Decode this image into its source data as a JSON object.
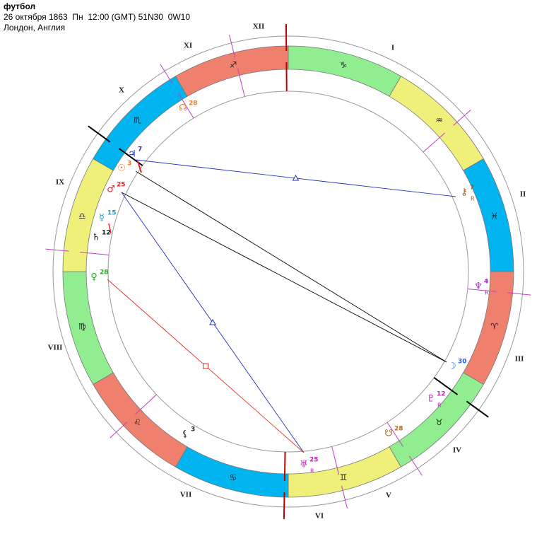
{
  "header": {
    "title": "футбол",
    "details": "26 октября 1863  Пн  12:00 (GMT) 51N30  0W10",
    "place": "Лондон, Англия"
  },
  "houses": [
    "I",
    "II",
    "III",
    "IV",
    "V",
    "VI",
    "VII",
    "VIII",
    "IX",
    "X",
    "XI",
    "XII"
  ],
  "signs": [
    {
      "glyph": "♑",
      "color": "#90ee90"
    },
    {
      "glyph": "♒",
      "color": "#eef07a"
    },
    {
      "glyph": "♓",
      "color": "#00b4f0"
    },
    {
      "glyph": "♈",
      "color": "#f0806e"
    },
    {
      "glyph": "♉",
      "color": "#90ee90"
    },
    {
      "glyph": "♊",
      "color": "#eef07a"
    },
    {
      "glyph": "♋",
      "color": "#00b4f0"
    },
    {
      "glyph": "♌",
      "color": "#f0806e"
    },
    {
      "glyph": "♍",
      "color": "#90ee90"
    },
    {
      "glyph": "♎",
      "color": "#eef07a"
    },
    {
      "glyph": "♏",
      "color": "#00b4f0"
    },
    {
      "glyph": "♐",
      "color": "#f0806e"
    }
  ],
  "planets": [
    {
      "glyph": "♃",
      "degree": 7,
      "color": "#2030c0"
    },
    {
      "glyph": "☉",
      "degree": 3,
      "color": "#f07020"
    },
    {
      "glyph": "♂",
      "degree": 25,
      "color": "#e02020"
    },
    {
      "glyph": "☿",
      "degree": 15,
      "color": "#20a0c0"
    },
    {
      "glyph": "♄",
      "degree": 12,
      "color": "#202020"
    },
    {
      "glyph": "♀",
      "degree": 28,
      "color": "#20b020"
    },
    {
      "glyph": "⚸",
      "degree": 3,
      "color": "#202020"
    },
    {
      "glyph": "♅",
      "degree": 25,
      "color": "#c020c0",
      "retrograde": "R"
    },
    {
      "glyph": "♇",
      "degree": 12,
      "color": "#c020c0",
      "retrograde": "R"
    },
    {
      "glyph": "☊",
      "degree": 28,
      "color": "#e08020"
    },
    {
      "glyph": "☋",
      "degree": 28,
      "color": "#b07020"
    },
    {
      "glyph": "☽",
      "degree": 30,
      "color": "#2060e0"
    },
    {
      "glyph": "⚷",
      "degree": 7,
      "color": "#a06020",
      "retrograde": "R"
    },
    {
      "glyph": "♆",
      "degree": 4,
      "color": "#a020c0",
      "retrograde": "R"
    }
  ]
}
